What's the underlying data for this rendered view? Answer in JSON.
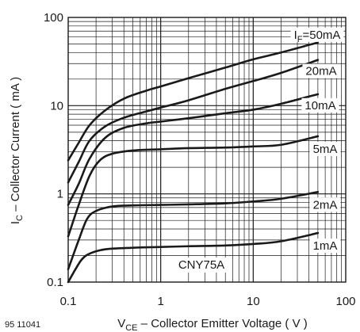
{
  "figure_id": "95 11041",
  "chart_data": {
    "type": "line",
    "x_scale": "log",
    "y_scale": "log",
    "xlim": [
      0.1,
      100
    ],
    "ylim": [
      0.1,
      100
    ],
    "grid": true,
    "xlabel": {
      "prefix": "V",
      "sub": "CE",
      "rest": " – Collector Emitter Voltage ( V )"
    },
    "ylabel": {
      "prefix": "I",
      "sub": "C",
      "rest": " – Collector Current ( mA )"
    },
    "x_ticks": [
      {
        "value": 0.1,
        "label": "0.1"
      },
      {
        "value": 1,
        "label": "1"
      },
      {
        "value": 10,
        "label": "10"
      },
      {
        "value": 100,
        "label": "100"
      }
    ],
    "y_ticks": [
      {
        "value": 0.1,
        "label": "0.1"
      },
      {
        "value": 1,
        "label": "1"
      },
      {
        "value": 10,
        "label": "10"
      },
      {
        "value": 100,
        "label": "100"
      }
    ],
    "annotation": "CNY75A",
    "series": [
      {
        "name": "I_F=50mA",
        "label": {
          "prefix": "I",
          "sub": "F",
          "rest": "=50mA"
        },
        "x": [
          0.1,
          0.13,
          0.17,
          0.25,
          0.4,
          0.7,
          1,
          2,
          5,
          10,
          20,
          50
        ],
        "y": [
          2.4,
          3.8,
          6.0,
          8.8,
          12.0,
          14.8,
          16.5,
          20.5,
          27.0,
          33.5,
          40.0,
          52.0
        ]
      },
      {
        "name": "20mA",
        "label": {
          "prefix": "20mA",
          "sub": "",
          "rest": ""
        },
        "x": [
          0.1,
          0.13,
          0.17,
          0.25,
          0.4,
          0.7,
          1,
          2,
          5,
          10,
          20,
          50
        ],
        "y": [
          1.35,
          2.3,
          4.0,
          5.8,
          7.3,
          8.6,
          9.5,
          11.5,
          15.5,
          19.0,
          23.5,
          33.0
        ]
      },
      {
        "name": "10mA",
        "label": {
          "prefix": "10mA",
          "sub": "",
          "rest": ""
        },
        "x": [
          0.1,
          0.13,
          0.17,
          0.25,
          0.4,
          0.7,
          1,
          2,
          5,
          10,
          20,
          50
        ],
        "y": [
          0.75,
          1.3,
          2.5,
          4.3,
          5.6,
          6.3,
          6.6,
          7.2,
          8.2,
          9.0,
          10.5,
          13.5
        ]
      },
      {
        "name": "5mA",
        "label": {
          "prefix": "5mA",
          "sub": "",
          "rest": ""
        },
        "x": [
          0.1,
          0.13,
          0.17,
          0.22,
          0.3,
          0.5,
          1,
          2,
          5,
          10,
          20,
          50
        ],
        "y": [
          0.33,
          0.75,
          1.6,
          2.4,
          2.85,
          3.1,
          3.2,
          3.3,
          3.35,
          3.45,
          3.6,
          4.5
        ]
      },
      {
        "name": "2mA",
        "label": {
          "prefix": "2mA",
          "sub": "",
          "rest": ""
        },
        "x": [
          0.1,
          0.13,
          0.16,
          0.2,
          0.3,
          0.5,
          1,
          2,
          5,
          10,
          20,
          50
        ],
        "y": [
          0.14,
          0.3,
          0.52,
          0.64,
          0.72,
          0.74,
          0.75,
          0.76,
          0.78,
          0.82,
          0.88,
          1.05
        ]
      },
      {
        "name": "1mA",
        "label": {
          "prefix": "1mA",
          "sub": "",
          "rest": ""
        },
        "x": [
          0.1,
          0.12,
          0.14,
          0.17,
          0.25,
          0.5,
          1,
          2,
          5,
          10,
          20,
          50
        ],
        "y": [
          0.1,
          0.14,
          0.18,
          0.21,
          0.235,
          0.245,
          0.25,
          0.255,
          0.26,
          0.27,
          0.29,
          0.36
        ]
      }
    ]
  }
}
